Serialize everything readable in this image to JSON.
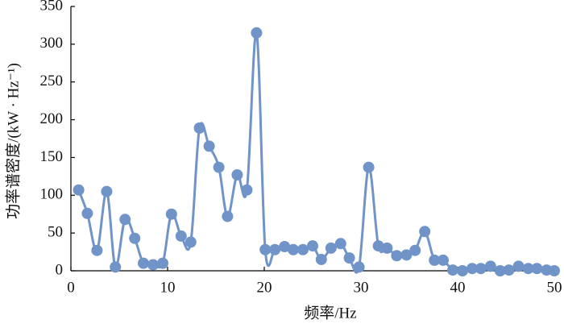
{
  "chart_data": {
    "type": "line",
    "x_label": "频率/Hz",
    "y_label": "功率谱密度/(kW · Hz⁻¹)",
    "x": [
      0.8,
      1.7,
      2.7,
      3.7,
      4.6,
      5.6,
      6.6,
      7.5,
      8.5,
      9.5,
      10.4,
      11.4,
      12.4,
      13.3,
      14.3,
      15.3,
      16.2,
      17.2,
      18.2,
      19.2,
      20.1,
      21.1,
      22.1,
      23.0,
      24.0,
      25.0,
      25.9,
      26.9,
      27.9,
      28.8,
      29.8,
      30.8,
      31.8,
      32.7,
      33.7,
      34.7,
      35.6,
      36.6,
      37.6,
      38.5,
      39.5,
      40.5,
      41.5,
      42.4,
      43.4,
      44.4,
      45.3,
      46.3,
      47.3,
      48.2,
      49.2,
      50.0
    ],
    "series": [
      {
        "color": "#7094c8",
        "values": [
          107,
          76,
          27,
          105,
          5,
          68,
          43,
          10,
          8,
          10,
          75,
          46,
          38,
          189,
          165,
          137,
          72,
          127,
          107,
          315,
          28,
          28,
          32,
          28,
          28,
          33,
          15,
          30,
          36,
          17,
          5,
          137,
          33,
          30,
          20,
          21,
          27,
          52,
          14,
          14,
          1,
          0,
          3,
          3,
          6,
          0,
          1,
          6,
          3,
          3,
          1,
          0
        ]
      }
    ],
    "xlim": [
      0,
      50
    ],
    "xticks": [
      0,
      10,
      20,
      30,
      40,
      50
    ],
    "ylim": [
      0,
      350
    ],
    "yticks": [
      0,
      50,
      100,
      150,
      200,
      250,
      300,
      350
    ],
    "grid": false
  }
}
